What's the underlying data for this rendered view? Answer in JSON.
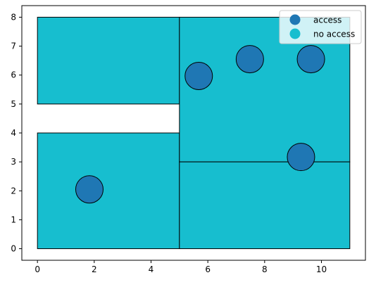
{
  "chart_data": {
    "type": "scatter",
    "xlim": [
      -0.55,
      11.55
    ],
    "ylim": [
      -0.4,
      8.4
    ],
    "x_ticks": [
      0,
      2,
      4,
      6,
      8,
      10
    ],
    "y_ticks": [
      0,
      1,
      2,
      3,
      4,
      5,
      6,
      7,
      8
    ],
    "grid": false,
    "legend_position": "top-right",
    "rectangles": [
      {
        "x0": 0,
        "y0": 5,
        "x1": 5,
        "y1": 8,
        "color": "#17becf"
      },
      {
        "x0": 0,
        "y0": 0,
        "x1": 5,
        "y1": 4,
        "color": "#17becf"
      },
      {
        "x0": 5,
        "y0": 3,
        "x1": 11,
        "y1": 8,
        "color": "#17becf"
      },
      {
        "x0": 5,
        "y0": 0,
        "x1": 11,
        "y1": 3,
        "color": "#17becf"
      }
    ],
    "series": [
      {
        "name": "access",
        "color": "#1f77b4",
        "points": [
          {
            "x": 1.83,
            "y": 2.05
          },
          {
            "x": 5.68,
            "y": 5.97
          },
          {
            "x": 7.48,
            "y": 6.55
          },
          {
            "x": 9.63,
            "y": 6.55
          },
          {
            "x": 9.28,
            "y": 3.17
          }
        ]
      },
      {
        "name": "no access",
        "color": "#17becf",
        "points": []
      }
    ]
  }
}
